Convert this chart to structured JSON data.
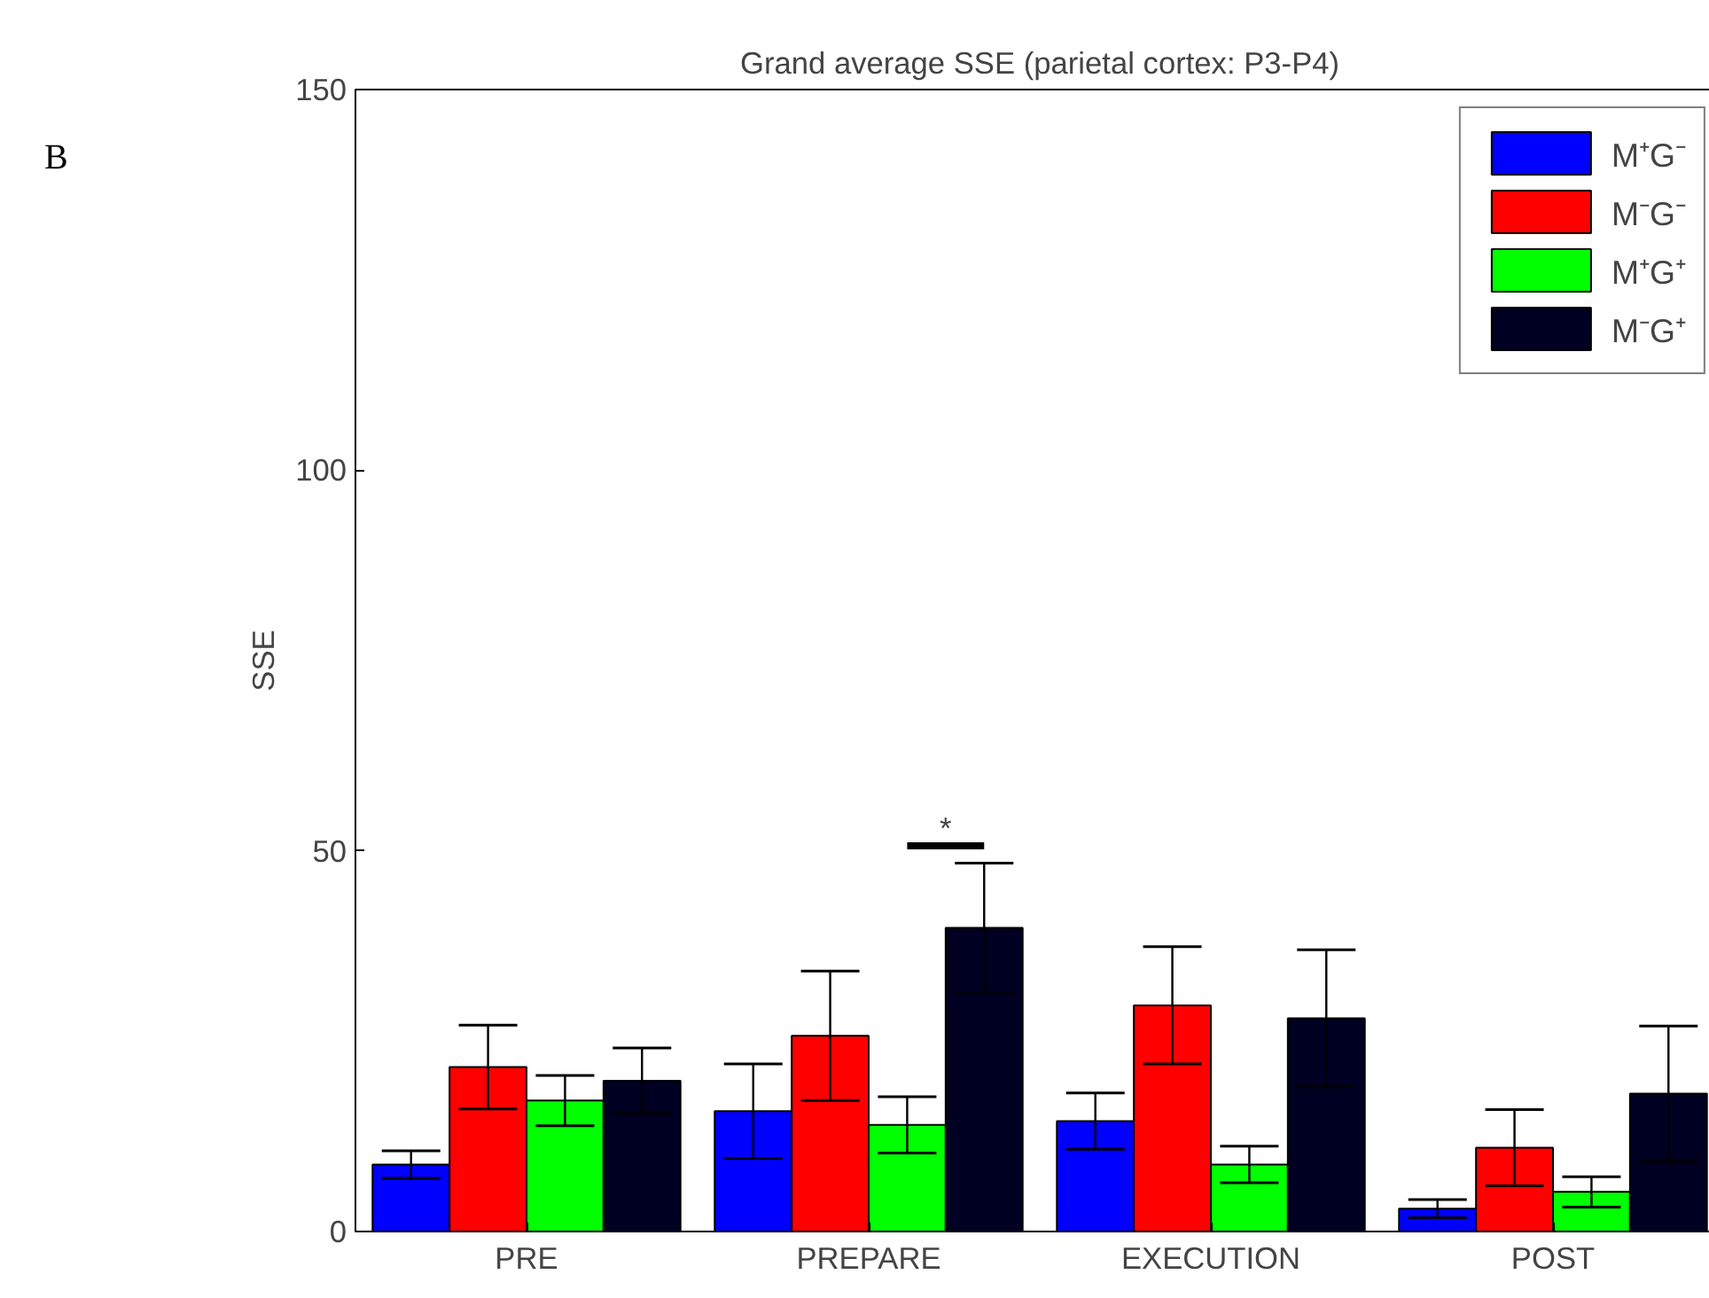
{
  "chart_data": {
    "type": "bar",
    "title": "Grand average SSE (parietal cortex: P3-P4)",
    "ylabel": "SSE",
    "categories": [
      "PRE",
      "PREPARE",
      "EXECUTION",
      "POST"
    ],
    "series": [
      {
        "name": "M⁺G⁻",
        "color": "#0000ff",
        "values": [
          8.8,
          15.8,
          14.5,
          3.0
        ],
        "errors": [
          1.8,
          6.2,
          3.7,
          1.2
        ]
      },
      {
        "name": "M⁻G⁻",
        "color": "#ff0000",
        "values": [
          21.6,
          25.7,
          29.7,
          11.0
        ],
        "errors": [
          5.5,
          8.5,
          7.7,
          5.0
        ]
      },
      {
        "name": "M⁺G⁺",
        "color": "#00ff00",
        "values": [
          17.2,
          14.0,
          8.8,
          5.2
        ],
        "errors": [
          3.3,
          3.7,
          2.4,
          2.0
        ]
      },
      {
        "name": "M⁻G⁺",
        "color": "#000022",
        "values": [
          19.8,
          39.9,
          28.0,
          18.1
        ],
        "errors": [
          4.3,
          8.5,
          9.0,
          8.9
        ]
      }
    ],
    "ylim": [
      0,
      150
    ],
    "yticks": [
      0,
      50,
      100,
      150
    ],
    "grid": false,
    "legend": "top right",
    "annotations": [
      "B",
      "*"
    ]
  }
}
